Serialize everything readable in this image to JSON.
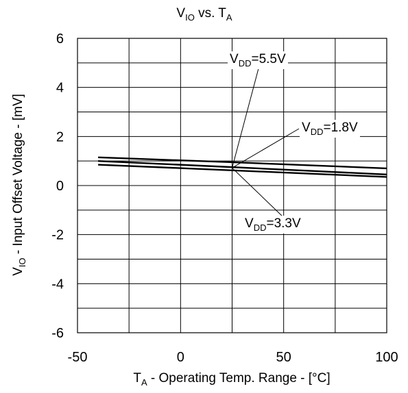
{
  "chart_data": {
    "type": "line",
    "title": {
      "main": "V",
      "main_sub": "IO",
      "mid": " vs. T",
      "end_sub": "A"
    },
    "xlabel": {
      "pre": "T",
      "sub": "A",
      "post": " - Operating Temp. Range - [°C]"
    },
    "ylabel": {
      "pre": "V",
      "sub": "IO",
      "post": " - Input Offset Voltage - [mV]"
    },
    "xlim": [
      -50,
      100
    ],
    "ylim": [
      -6,
      6
    ],
    "xticks": [
      -50,
      0,
      50,
      100
    ],
    "xtick_labels": [
      "-50",
      "0",
      "50",
      "100"
    ],
    "yticks": [
      -6,
      -4,
      -2,
      0,
      2,
      4,
      6
    ],
    "ytick_labels": [
      "-6",
      "-4",
      "-2",
      "0",
      "2",
      "4",
      "6"
    ],
    "grid": true,
    "line_color": "#000000",
    "series": [
      {
        "name": "VDD=5.5V",
        "x": [
          -40,
          25,
          100
        ],
        "y": [
          1.15,
          0.95,
          0.7
        ]
      },
      {
        "name": "VDD=1.8V",
        "x": [
          -40,
          25,
          100
        ],
        "y": [
          1.0,
          0.75,
          0.45
        ]
      },
      {
        "name": "VDD=3.3V",
        "x": [
          -40,
          25,
          100
        ],
        "y": [
          0.85,
          0.62,
          0.35
        ]
      }
    ],
    "annotations": [
      {
        "pre": "V",
        "sub": "DD",
        "post": "=5.5V",
        "series": 0
      },
      {
        "pre": "V",
        "sub": "DD",
        "post": "=1.8V",
        "series": 1
      },
      {
        "pre": "V",
        "sub": "DD",
        "post": "=3.3V",
        "series": 2
      }
    ]
  }
}
